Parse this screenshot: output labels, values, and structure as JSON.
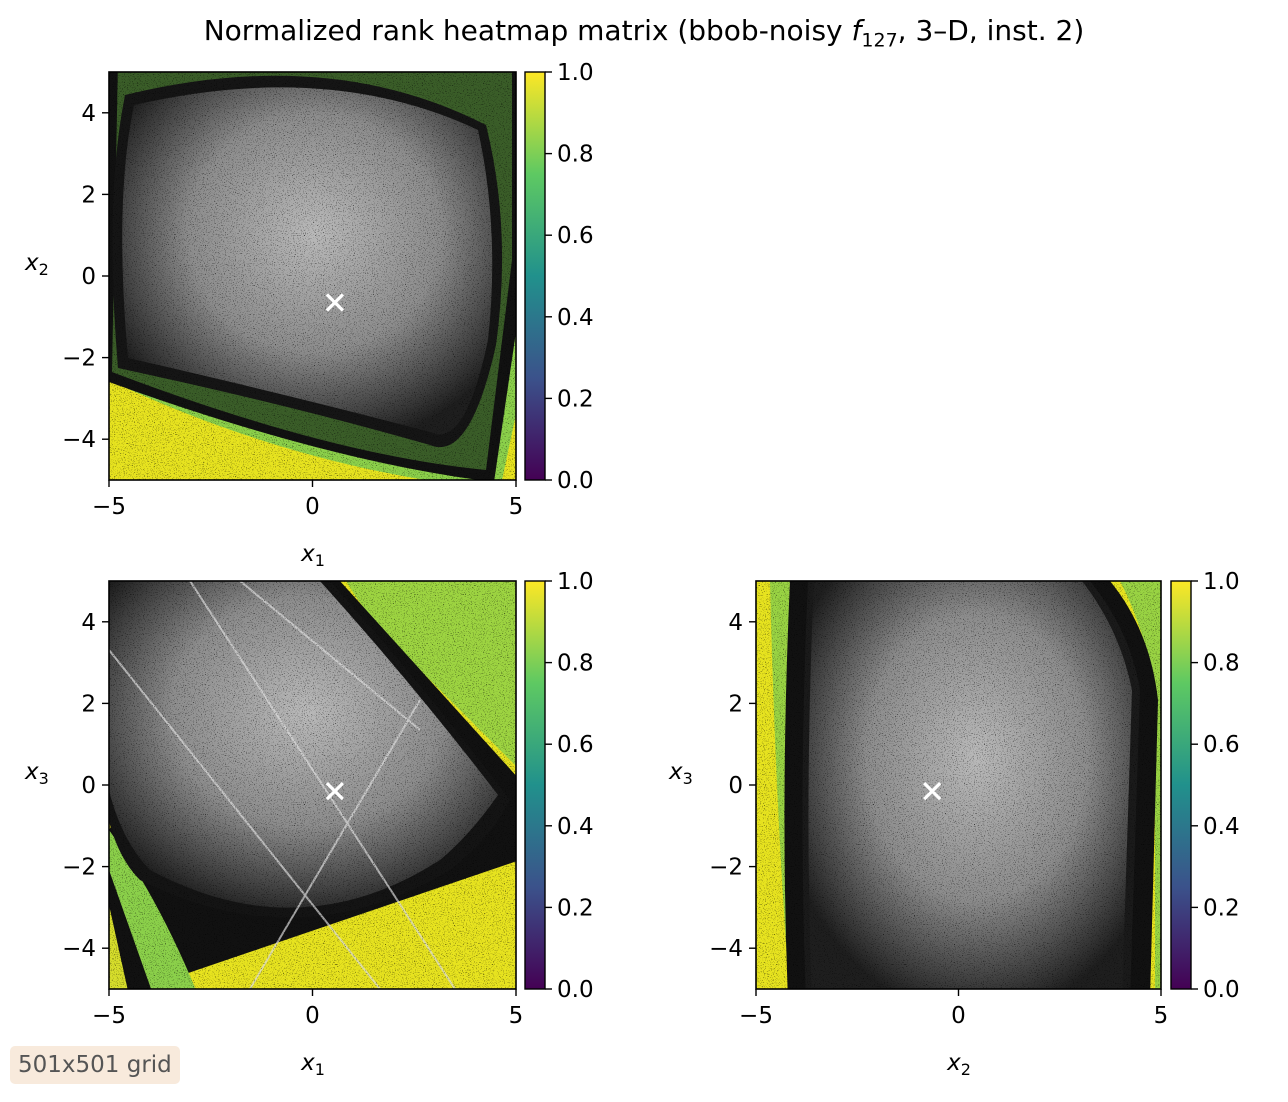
{
  "title": {
    "prefix": "Normalized rank heatmap matrix (bbob-noisy ",
    "func_italic": "f",
    "func_sub": "127",
    "suffix": ", 3–D, inst. 2)"
  },
  "badge": "501x501 grid",
  "colormap": {
    "name": "viridis",
    "stops": [
      "#440154",
      "#3b528b",
      "#21918c",
      "#5ec962",
      "#fde725"
    ],
    "ticks": [
      "0.0",
      "0.2",
      "0.4",
      "0.6",
      "0.8",
      "1.0"
    ]
  },
  "chart_data": [
    {
      "type": "heatmap",
      "panel": "x1-x2",
      "x_var": "x",
      "x_sub": "1",
      "y_var": "x",
      "y_sub": "2",
      "xlim": [
        -5,
        5
      ],
      "ylim": [
        -5,
        5
      ],
      "xticks": [
        "−5",
        "0",
        "5"
      ],
      "yticks": [
        "−4",
        "−2",
        "0",
        "2",
        "4"
      ],
      "optimum_marker": {
        "x": 0.55,
        "y": -0.65
      },
      "colorbar_range": [
        0.0,
        1.0
      ]
    },
    {
      "type": "heatmap",
      "panel": "x1-x3",
      "x_var": "x",
      "x_sub": "1",
      "y_var": "x",
      "y_sub": "3",
      "xlim": [
        -5,
        5
      ],
      "ylim": [
        -5,
        5
      ],
      "xticks": [
        "−5",
        "0",
        "5"
      ],
      "yticks": [
        "−4",
        "−2",
        "0",
        "2",
        "4"
      ],
      "optimum_marker": {
        "x": 0.55,
        "y": -0.15
      },
      "colorbar_range": [
        0.0,
        1.0
      ]
    },
    {
      "type": "heatmap",
      "panel": "x2-x3",
      "x_var": "x",
      "x_sub": "2",
      "y_var": "x",
      "y_sub": "3",
      "xlim": [
        -5,
        5
      ],
      "ylim": [
        -5,
        5
      ],
      "xticks": [
        "−5",
        "0",
        "5"
      ],
      "yticks": [
        "−4",
        "−2",
        "0",
        "2",
        "4"
      ],
      "optimum_marker": {
        "x": -0.65,
        "y": -0.15
      },
      "colorbar_range": [
        0.0,
        1.0
      ]
    }
  ]
}
